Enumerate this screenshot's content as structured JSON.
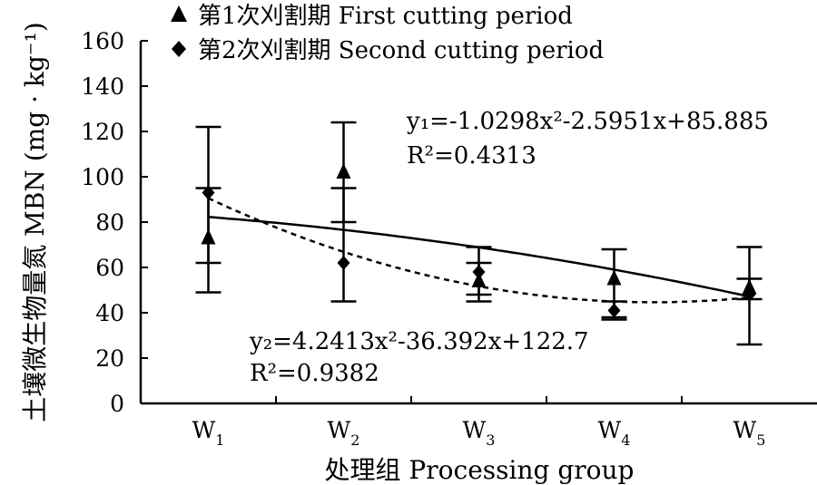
{
  "chart_data": {
    "type": "line",
    "categories": [
      "W1",
      "W2",
      "W3",
      "W4",
      "W5"
    ],
    "xlabel": "处理组 Processing group",
    "ylabel": "土壤微生物量氮 MBN (mg · kg⁻¹)",
    "ylim": [
      0,
      160
    ],
    "yticks": [
      0,
      20,
      40,
      60,
      80,
      100,
      120,
      140,
      160
    ],
    "grid": false,
    "legend_position": "top-left",
    "series": [
      {
        "name": "第1次刈割期 First cutting period",
        "marker": "triangle",
        "values": [
          73,
          102,
          54,
          55,
          51
        ],
        "error_low": [
          49,
          80,
          45,
          37,
          26
        ],
        "error_high": [
          122,
          124,
          69,
          68,
          69
        ],
        "trend": "solid",
        "trend_coef": [
          -1.0298,
          -2.5951,
          85.885
        ],
        "equation": "y₁=-1.0298x²-2.5951x+85.885",
        "r2": "R²=0.4313"
      },
      {
        "name": "第2次刈割期 Second cutting period",
        "marker": "diamond",
        "values": [
          93,
          62,
          58,
          41,
          48
        ],
        "error_low": [
          62,
          45,
          48,
          38,
          46
        ],
        "error_high": [
          95,
          95,
          62,
          45,
          55
        ],
        "trend": "dashed",
        "trend_coef": [
          4.2413,
          -36.392,
          122.7
        ],
        "equation": "y₂=4.2413x²-36.392x+122.7",
        "r2": "R²=0.9382"
      }
    ]
  }
}
